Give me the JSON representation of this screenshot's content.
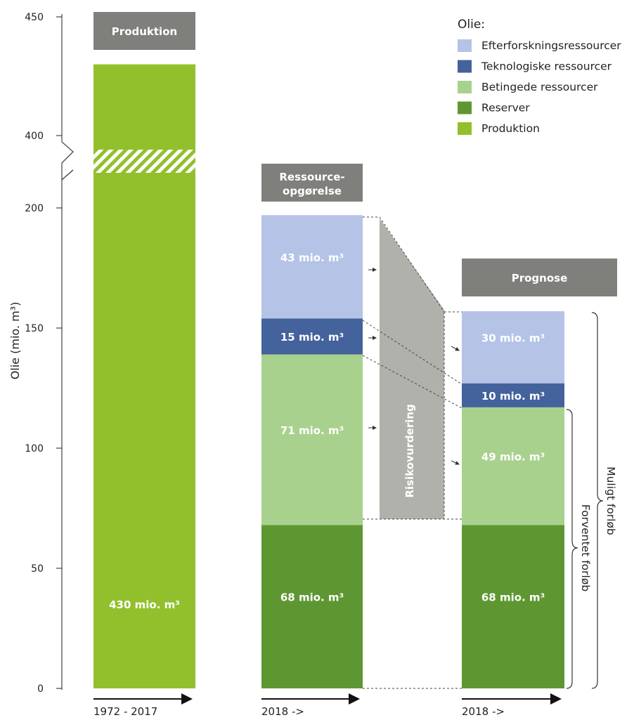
{
  "colors": {
    "efterforskning": "#b4c3e6",
    "teknologiske": "#44629c",
    "betingede": "#a9d18e",
    "reserver": "#5e9732",
    "produktion": "#92c02d",
    "header": "#7f7f7b",
    "risk": "#b1b1ab"
  },
  "chart_data": {
    "type": "bar",
    "ylabel": "Olie (mio. m³)",
    "y_ticks_lower": [
      0,
      50,
      100,
      150,
      200
    ],
    "y_ticks_upper": [
      400,
      450
    ],
    "axis_break": true,
    "legend": {
      "title": "Olie:",
      "placement": "top-right",
      "items": [
        {
          "key": "efterforskning",
          "label": "Efterforskningsressourcer"
        },
        {
          "key": "teknologiske",
          "label": "Teknologiske ressourcer"
        },
        {
          "key": "betingede",
          "label": "Betingede ressourcer"
        },
        {
          "key": "reserver",
          "label": "Reserver"
        },
        {
          "key": "produktion",
          "label": "Produktion"
        }
      ]
    },
    "bars": [
      {
        "header": [
          "Produktion"
        ],
        "period": "1972 - 2017",
        "segments": [
          {
            "key": "produktion",
            "value": 430,
            "label": "430 mio. m³"
          }
        ]
      },
      {
        "header": [
          "Ressource-",
          "opgørelse"
        ],
        "period": "2018 ->",
        "segments": [
          {
            "key": "reserver",
            "value": 68,
            "label": "68 mio. m³"
          },
          {
            "key": "betingede",
            "value": 71,
            "label": "71 mio. m³"
          },
          {
            "key": "teknologiske",
            "value": 15,
            "label": "15 mio. m³"
          },
          {
            "key": "efterforskning",
            "value": 43,
            "label": "43 mio. m³"
          }
        ]
      },
      {
        "header": [
          "Prognose"
        ],
        "period": "2018 ->",
        "segments": [
          {
            "key": "reserver",
            "value": 68,
            "label": "68 mio. m³"
          },
          {
            "key": "betingede",
            "value": 49,
            "label": "49 mio. m³"
          },
          {
            "key": "teknologiske",
            "value": 10,
            "label": "10 mio. m³"
          },
          {
            "key": "efterforskning",
            "value": 30,
            "label": "30 mio. m³"
          }
        ]
      }
    ],
    "risk_label": "Risikovurdering",
    "bracket_labels": {
      "expected": "Forventet forløb",
      "possible": "Muligt forløb"
    }
  }
}
